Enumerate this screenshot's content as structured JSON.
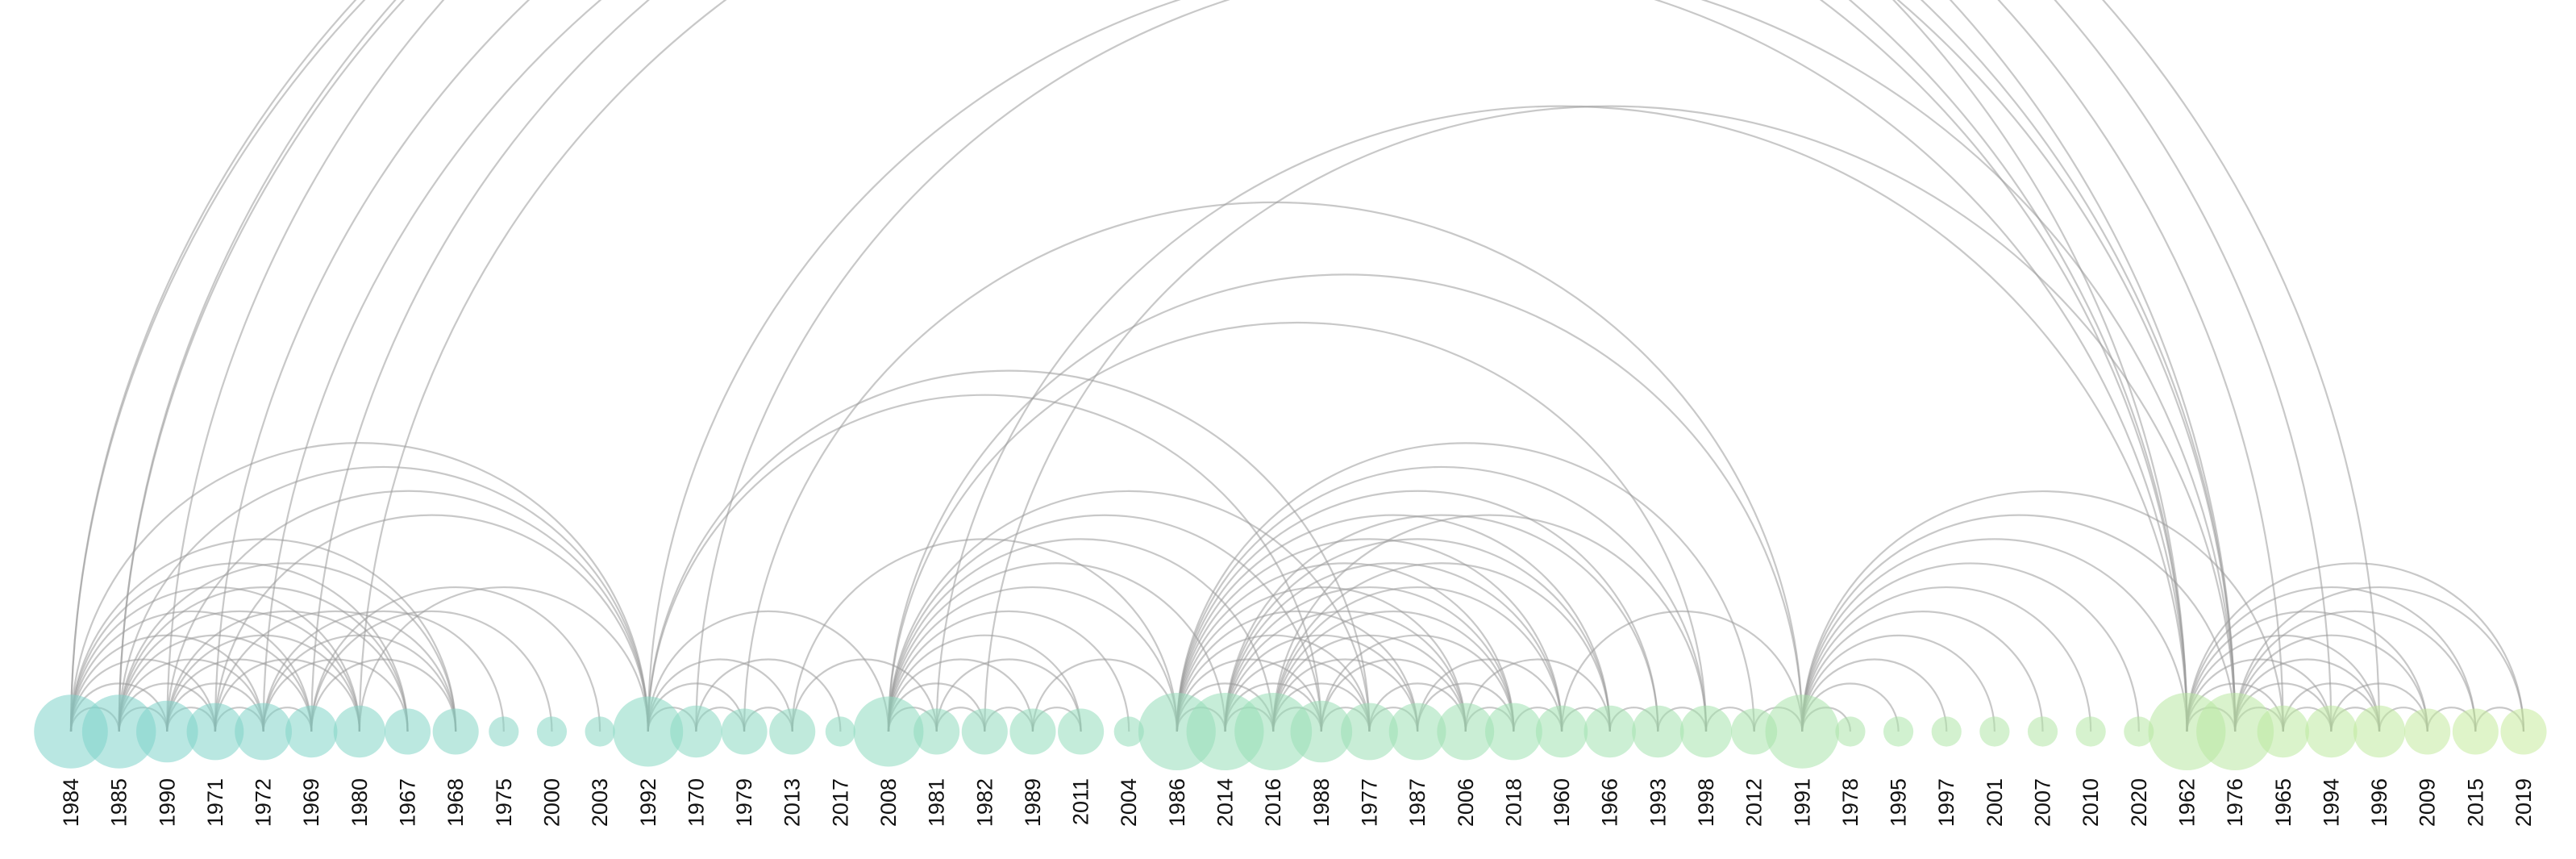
{
  "diagram": {
    "type": "arc-diagram",
    "nodes": [
      {
        "year": "1984",
        "size": 9,
        "color": "#7fd3cb"
      },
      {
        "year": "1985",
        "size": 9,
        "color": "#7fd3cb"
      },
      {
        "year": "1990",
        "size": 6,
        "color": "#80d4ca"
      },
      {
        "year": "1971",
        "size": 5,
        "color": "#80d4c9"
      },
      {
        "year": "1972",
        "size": 5,
        "color": "#81d4c8"
      },
      {
        "year": "1969",
        "size": 4,
        "color": "#82d5c8"
      },
      {
        "year": "1980",
        "size": 4,
        "color": "#83d5c7"
      },
      {
        "year": "1967",
        "size": 3,
        "color": "#84d5c6"
      },
      {
        "year": "1968",
        "size": 3,
        "color": "#85d6c5"
      },
      {
        "year": "1975",
        "size": 1,
        "color": "#86d6c5"
      },
      {
        "year": "2000",
        "size": 1,
        "color": "#87d7c4"
      },
      {
        "year": "2003",
        "size": 1,
        "color": "#88d7c3"
      },
      {
        "year": "1992",
        "size": 8,
        "color": "#89d8c2"
      },
      {
        "year": "1970",
        "size": 4,
        "color": "#8ad8c2"
      },
      {
        "year": "1979",
        "size": 3,
        "color": "#8bd9c1"
      },
      {
        "year": "2013",
        "size": 3,
        "color": "#8cd9c0"
      },
      {
        "year": "2017",
        "size": 1,
        "color": "#8ddac0"
      },
      {
        "year": "2008",
        "size": 8,
        "color": "#8edabf"
      },
      {
        "year": "1981",
        "size": 3,
        "color": "#90dbbe"
      },
      {
        "year": "1982",
        "size": 3,
        "color": "#91dbbd"
      },
      {
        "year": "1989",
        "size": 3,
        "color": "#92dcbc"
      },
      {
        "year": "2011",
        "size": 3,
        "color": "#93dcbb"
      },
      {
        "year": "2004",
        "size": 1,
        "color": "#94ddba"
      },
      {
        "year": "1986",
        "size": 10,
        "color": "#96ddb9"
      },
      {
        "year": "2014",
        "size": 10,
        "color": "#97deb8"
      },
      {
        "year": "2016",
        "size": 10,
        "color": "#98deb7"
      },
      {
        "year": "1988",
        "size": 6,
        "color": "#9adfb6"
      },
      {
        "year": "1977",
        "size": 5,
        "color": "#9bdfb5"
      },
      {
        "year": "1987",
        "size": 5,
        "color": "#9ce0b4"
      },
      {
        "year": "2006",
        "size": 5,
        "color": "#9ee0b3"
      },
      {
        "year": "2018",
        "size": 5,
        "color": "#9fe1b2"
      },
      {
        "year": "1960",
        "size": 4,
        "color": "#a1e1b1"
      },
      {
        "year": "1966",
        "size": 4,
        "color": "#a2e2b0"
      },
      {
        "year": "1993",
        "size": 4,
        "color": "#a4e2ae"
      },
      {
        "year": "1998",
        "size": 4,
        "color": "#a5e3ad"
      },
      {
        "year": "2012",
        "size": 3,
        "color": "#a7e3ac"
      },
      {
        "year": "1991",
        "size": 9,
        "color": "#a9e4ab"
      },
      {
        "year": "1978",
        "size": 1,
        "color": "#abe4aa"
      },
      {
        "year": "1995",
        "size": 1,
        "color": "#ace5a9"
      },
      {
        "year": "1997",
        "size": 1,
        "color": "#aee5a8"
      },
      {
        "year": "2001",
        "size": 1,
        "color": "#b0e6a7"
      },
      {
        "year": "2007",
        "size": 1,
        "color": "#b2e6a6"
      },
      {
        "year": "2010",
        "size": 1,
        "color": "#b4e7a5"
      },
      {
        "year": "2020",
        "size": 1,
        "color": "#b6e7a4"
      },
      {
        "year": "1962",
        "size": 10,
        "color": "#b8e8a3"
      },
      {
        "year": "1976",
        "size": 10,
        "color": "#bae8a2"
      },
      {
        "year": "1965",
        "size": 4,
        "color": "#bce9a1"
      },
      {
        "year": "1994",
        "size": 4,
        "color": "#bee9a0"
      },
      {
        "year": "1996",
        "size": 4,
        "color": "#c0ea9f"
      },
      {
        "year": "2009",
        "size": 3,
        "color": "#c2ea9e"
      },
      {
        "year": "2015",
        "size": 3,
        "color": "#c4eb9d"
      },
      {
        "year": "2019",
        "size": 3,
        "color": "#c6eb9c"
      }
    ],
    "links": [
      [
        "1984",
        "1976"
      ],
      [
        "1984",
        "1962"
      ],
      [
        "1985",
        "1965"
      ],
      [
        "1985",
        "1994"
      ],
      [
        "1990",
        "1996"
      ],
      [
        "1971",
        "1976"
      ],
      [
        "1972",
        "1962"
      ],
      [
        "1969",
        "1976"
      ],
      [
        "1980",
        "1962"
      ],
      [
        "1984",
        "1985"
      ],
      [
        "1984",
        "1990"
      ],
      [
        "1984",
        "1971"
      ],
      [
        "1984",
        "1972"
      ],
      [
        "1984",
        "1969"
      ],
      [
        "1984",
        "1980"
      ],
      [
        "1984",
        "1967"
      ],
      [
        "1984",
        "1968"
      ],
      [
        "1984",
        "1992"
      ],
      [
        "1985",
        "1990"
      ],
      [
        "1985",
        "1971"
      ],
      [
        "1985",
        "1972"
      ],
      [
        "1985",
        "1969"
      ],
      [
        "1985",
        "1980"
      ],
      [
        "1985",
        "1967"
      ],
      [
        "1985",
        "1968"
      ],
      [
        "1985",
        "1992"
      ],
      [
        "1990",
        "1971"
      ],
      [
        "1990",
        "1972"
      ],
      [
        "1990",
        "1969"
      ],
      [
        "1990",
        "1980"
      ],
      [
        "1990",
        "1967"
      ],
      [
        "1990",
        "1992"
      ],
      [
        "1971",
        "1972"
      ],
      [
        "1971",
        "1980"
      ],
      [
        "1971",
        "1968"
      ],
      [
        "1971",
        "1992"
      ],
      [
        "1972",
        "1969"
      ],
      [
        "1972",
        "1967"
      ],
      [
        "1972",
        "1968"
      ],
      [
        "1972",
        "1975"
      ],
      [
        "1969",
        "1968"
      ],
      [
        "1969",
        "2000"
      ],
      [
        "1980",
        "1992"
      ],
      [
        "1969",
        "2003"
      ],
      [
        "1992",
        "1970"
      ],
      [
        "1992",
        "1979"
      ],
      [
        "1992",
        "2013"
      ],
      [
        "1992",
        "2008"
      ],
      [
        "1992",
        "1988"
      ],
      [
        "1992",
        "1977"
      ],
      [
        "1970",
        "1979"
      ],
      [
        "1979",
        "2013"
      ],
      [
        "2013",
        "1981"
      ],
      [
        "1970",
        "2017"
      ],
      [
        "1992",
        "1962"
      ],
      [
        "1970",
        "1976"
      ],
      [
        "1979",
        "1991"
      ],
      [
        "2013",
        "1986"
      ],
      [
        "2008",
        "1981"
      ],
      [
        "2008",
        "1982"
      ],
      [
        "2008",
        "1989"
      ],
      [
        "2008",
        "2011"
      ],
      [
        "2008",
        "2004"
      ],
      [
        "2008",
        "1986"
      ],
      [
        "2008",
        "2014"
      ],
      [
        "2008",
        "2016"
      ],
      [
        "2008",
        "1988"
      ],
      [
        "2008",
        "1977"
      ],
      [
        "2008",
        "1998"
      ],
      [
        "2008",
        "1991"
      ],
      [
        "1981",
        "1982"
      ],
      [
        "1981",
        "2011"
      ],
      [
        "1981",
        "1962"
      ],
      [
        "1982",
        "1976"
      ],
      [
        "1982",
        "1989"
      ],
      [
        "1989",
        "2011"
      ],
      [
        "1989",
        "1986"
      ],
      [
        "1986",
        "2014"
      ],
      [
        "1986",
        "2016"
      ],
      [
        "1986",
        "1988"
      ],
      [
        "1986",
        "1977"
      ],
      [
        "1986",
        "1987"
      ],
      [
        "1986",
        "2006"
      ],
      [
        "1986",
        "2018"
      ],
      [
        "1986",
        "1960"
      ],
      [
        "1986",
        "1966"
      ],
      [
        "1986",
        "1993"
      ],
      [
        "1986",
        "1998"
      ],
      [
        "1986",
        "2012"
      ],
      [
        "2014",
        "2016"
      ],
      [
        "2014",
        "1988"
      ],
      [
        "2014",
        "1977"
      ],
      [
        "2014",
        "1987"
      ],
      [
        "2014",
        "2006"
      ],
      [
        "2014",
        "2018"
      ],
      [
        "2014",
        "1960"
      ],
      [
        "2014",
        "1966"
      ],
      [
        "2014",
        "1993"
      ],
      [
        "2016",
        "1988"
      ],
      [
        "2016",
        "1977"
      ],
      [
        "2016",
        "1987"
      ],
      [
        "2016",
        "2006"
      ],
      [
        "2016",
        "2018"
      ],
      [
        "2016",
        "1960"
      ],
      [
        "2016",
        "1966"
      ],
      [
        "2016",
        "1998"
      ],
      [
        "1988",
        "1977"
      ],
      [
        "1988",
        "2006"
      ],
      [
        "1988",
        "2018"
      ],
      [
        "1977",
        "1987"
      ],
      [
        "1977",
        "2006"
      ],
      [
        "1987",
        "2018"
      ],
      [
        "1987",
        "1960"
      ],
      [
        "2006",
        "2018"
      ],
      [
        "2006",
        "1966"
      ],
      [
        "2018",
        "1960"
      ],
      [
        "1960",
        "1966"
      ],
      [
        "1966",
        "1993"
      ],
      [
        "1993",
        "1998"
      ],
      [
        "1998",
        "2012"
      ],
      [
        "2012",
        "1991"
      ],
      [
        "1960",
        "1991"
      ],
      [
        "1991",
        "1978"
      ],
      [
        "1991",
        "1995"
      ],
      [
        "1991",
        "1997"
      ],
      [
        "1991",
        "2001"
      ],
      [
        "1991",
        "2007"
      ],
      [
        "1991",
        "2010"
      ],
      [
        "1991",
        "2020"
      ],
      [
        "1991",
        "1962"
      ],
      [
        "1991",
        "1976"
      ],
      [
        "1991",
        "1965"
      ],
      [
        "1962",
        "1976"
      ],
      [
        "1962",
        "1965"
      ],
      [
        "1962",
        "1994"
      ],
      [
        "1962",
        "1996"
      ],
      [
        "1962",
        "2009"
      ],
      [
        "1962",
        "2015"
      ],
      [
        "1962",
        "2019"
      ],
      [
        "1976",
        "1965"
      ],
      [
        "1976",
        "1994"
      ],
      [
        "1976",
        "1996"
      ],
      [
        "1976",
        "2009"
      ],
      [
        "1976",
        "2015"
      ],
      [
        "1976",
        "2019"
      ],
      [
        "1965",
        "1994"
      ],
      [
        "1965",
        "1996"
      ],
      [
        "1994",
        "1996"
      ],
      [
        "1994",
        "2009"
      ],
      [
        "1996",
        "2009"
      ],
      [
        "2009",
        "2015"
      ],
      [
        "2015",
        "2019"
      ]
    ],
    "colors": {
      "link_stroke": "#9a9a9a",
      "label_text": "#111111",
      "background": "#ffffff"
    }
  }
}
